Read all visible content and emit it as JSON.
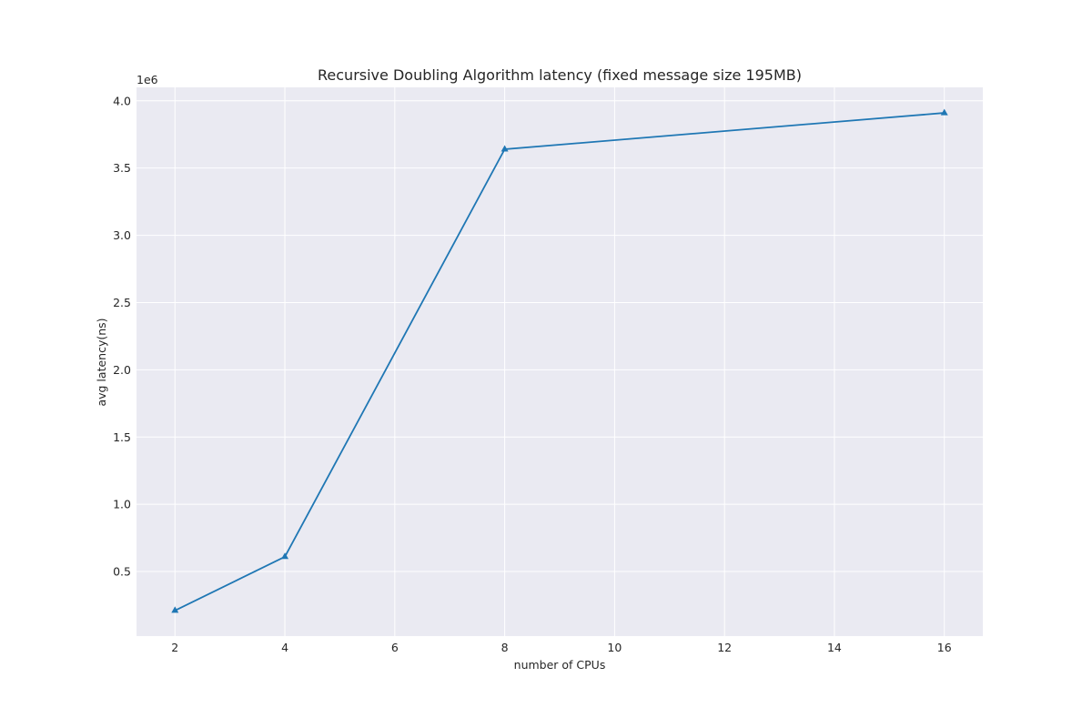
{
  "chart_data": {
    "type": "line",
    "title": "Recursive Doubling Algorithm latency (fixed message size 195MB)",
    "xlabel": "number of CPUs",
    "ylabel": "avg latency(ns)",
    "y_offset_label": "1e6",
    "xlim": [
      1.3,
      16.7
    ],
    "ylim": [
      0.02,
      4.1
    ],
    "x_ticks": [
      2,
      4,
      6,
      8,
      10,
      12,
      14,
      16
    ],
    "x_tick_labels": [
      "2",
      "4",
      "6",
      "8",
      "10",
      "12",
      "14",
      "16"
    ],
    "y_ticks": [
      0.5,
      1.0,
      1.5,
      2.0,
      2.5,
      3.0,
      3.5,
      4.0
    ],
    "y_tick_labels": [
      "0.5",
      "1.0",
      "1.5",
      "2.0",
      "2.5",
      "3.0",
      "3.5",
      "4.0"
    ],
    "grid": true,
    "marker": "triangle-up",
    "series": [
      {
        "x": [
          2,
          4,
          8,
          16
        ],
        "y": [
          0.21,
          0.61,
          3.64,
          3.91
        ],
        "color": "#1f77b4"
      }
    ]
  }
}
